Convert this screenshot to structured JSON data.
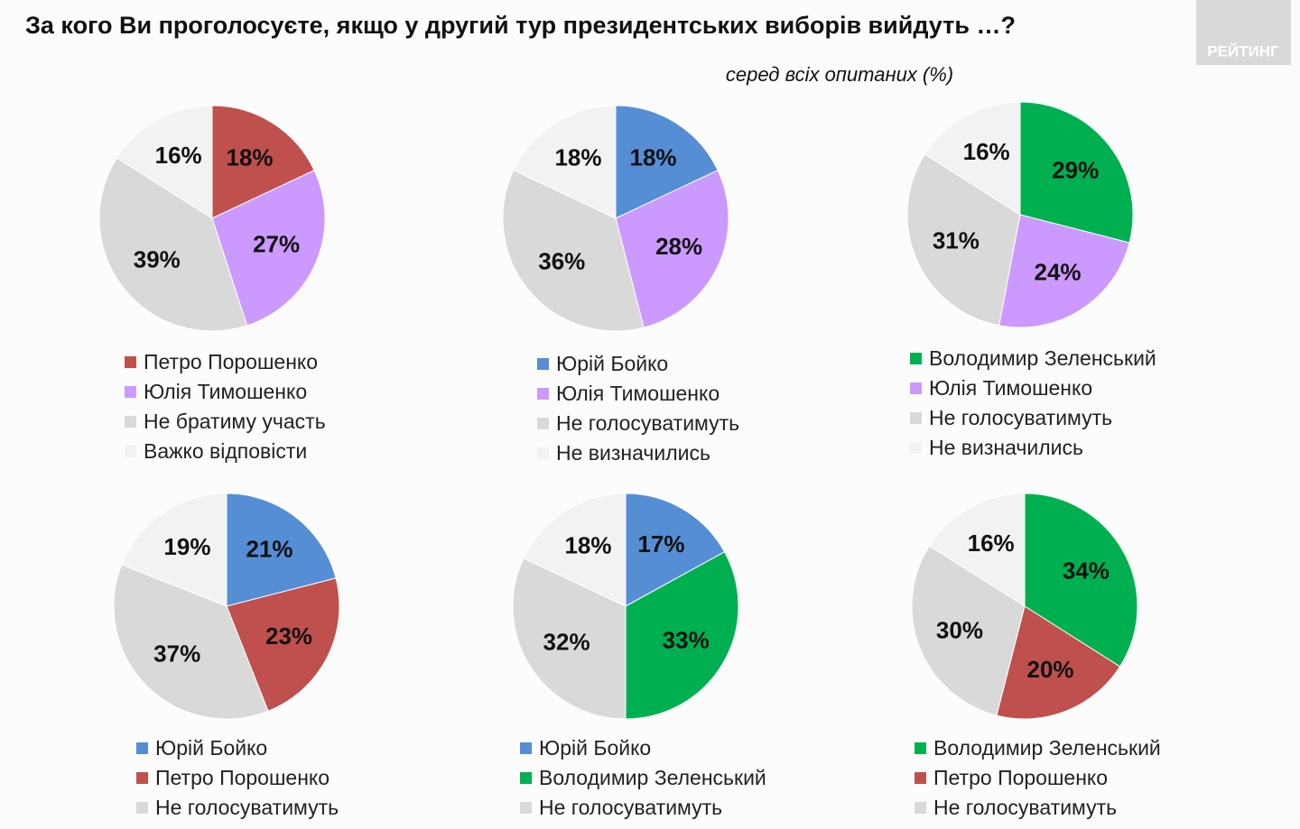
{
  "title": "За кого Ви проголосуєте, якщо у другий тур президентських виборів вийдуть …?",
  "subtitle": "серед всіх опитаних (%)",
  "logo": "РЕЙТИНГ",
  "chart_data": [
    {
      "type": "pie",
      "categories": [
        "Петро Порошенко",
        "Юлія Тимошенко",
        "Не братиму участь",
        "Важко відповісти"
      ],
      "values": [
        18,
        27,
        39,
        16
      ],
      "value_labels": [
        "18%",
        "27%",
        "39%",
        "16%"
      ],
      "colors": [
        "#c0504d",
        "#cc99ff",
        "#d9d9d9",
        "#f2f2f2"
      ]
    },
    {
      "type": "pie",
      "categories": [
        "Юрій Бойко",
        "Юлія Тимошенко",
        "Не голосуватимуть",
        "Не визначились"
      ],
      "values": [
        18,
        28,
        36,
        18
      ],
      "value_labels": [
        "18%",
        "28%",
        "36%",
        "18%"
      ],
      "colors": [
        "#558ed5",
        "#cc99ff",
        "#d9d9d9",
        "#f2f2f2"
      ]
    },
    {
      "type": "pie",
      "categories": [
        "Володимир Зеленський",
        "Юлія Тимошенко",
        "Не голосуватимуть",
        "Не визначились"
      ],
      "values": [
        29,
        24,
        31,
        16
      ],
      "value_labels": [
        "29%",
        "24%",
        "31%",
        "16%"
      ],
      "colors": [
        "#00b050",
        "#cc99ff",
        "#d9d9d9",
        "#f2f2f2"
      ]
    },
    {
      "type": "pie",
      "categories": [
        "Юрій Бойко",
        "Петро Порошенко",
        "Не голосуватимуть",
        null
      ],
      "values": [
        21,
        23,
        37,
        19
      ],
      "value_labels": [
        "21%",
        "23%",
        "37%",
        "19%"
      ],
      "colors": [
        "#558ed5",
        "#c0504d",
        "#d9d9d9",
        "#f2f2f2"
      ]
    },
    {
      "type": "pie",
      "categories": [
        "Юрій Бойко",
        "Володимир Зеленський",
        "Не голосуватимуть",
        null
      ],
      "values": [
        17,
        33,
        32,
        18
      ],
      "value_labels": [
        "17%",
        "33%",
        "32%",
        "18%"
      ],
      "colors": [
        "#558ed5",
        "#00b050",
        "#d9d9d9",
        "#f2f2f2"
      ]
    },
    {
      "type": "pie",
      "categories": [
        "Володимир Зеленський",
        "Петро Порошенко",
        "Не голосуватимуть",
        null
      ],
      "values": [
        34,
        20,
        30,
        16
      ],
      "value_labels": [
        "34%",
        "20%",
        "30%",
        "16%"
      ],
      "colors": [
        "#00b050",
        "#c0504d",
        "#d9d9d9",
        "#f2f2f2"
      ]
    }
  ]
}
